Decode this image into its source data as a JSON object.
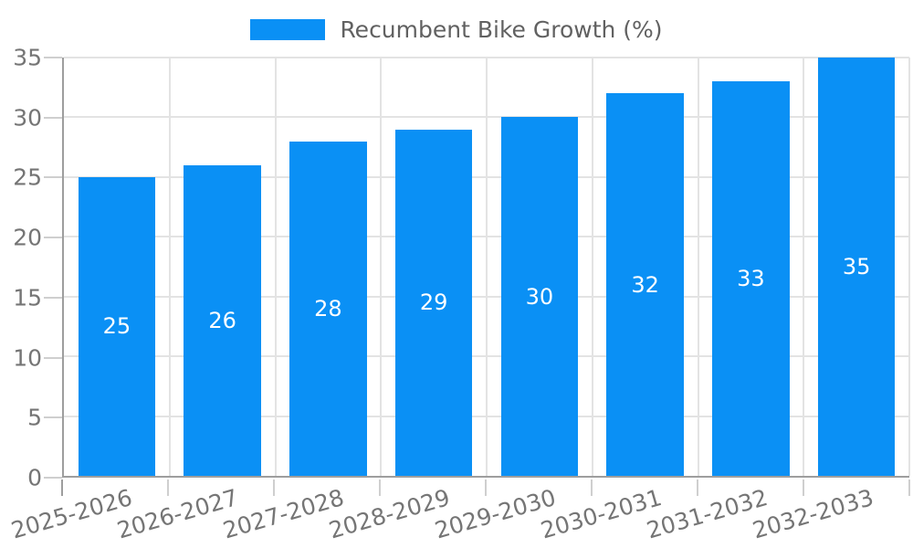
{
  "legend": {
    "label": "Recumbent Bike Growth (%)"
  },
  "chart_data": {
    "type": "bar",
    "title": "Recumbent Bike Growth (%)",
    "categories": [
      "2025-2026",
      "2026-2027",
      "2027-2028",
      "2028-2029",
      "2029-2030",
      "2030-2031",
      "2031-2032",
      "2032-2033"
    ],
    "values": [
      25,
      26,
      28,
      29,
      30,
      32,
      33,
      35
    ],
    "xlabel": "",
    "ylabel": "",
    "ylim": [
      0,
      35
    ],
    "yticks": [
      0,
      5,
      10,
      15,
      20,
      25,
      30,
      35
    ],
    "grid": true,
    "legend_position": "top-center",
    "value_labels": "centered-in-bar",
    "x_label_rotation_deg": -16,
    "colors": {
      "bar": "#0a90f5",
      "value_label": "#ffffff",
      "axis_line": "#9e9e9e",
      "gridline": "#e3e3e3",
      "tick": "#cfcfcf",
      "axis_text": "#757575",
      "legend_text": "#616161",
      "background": "#ffffff"
    }
  }
}
